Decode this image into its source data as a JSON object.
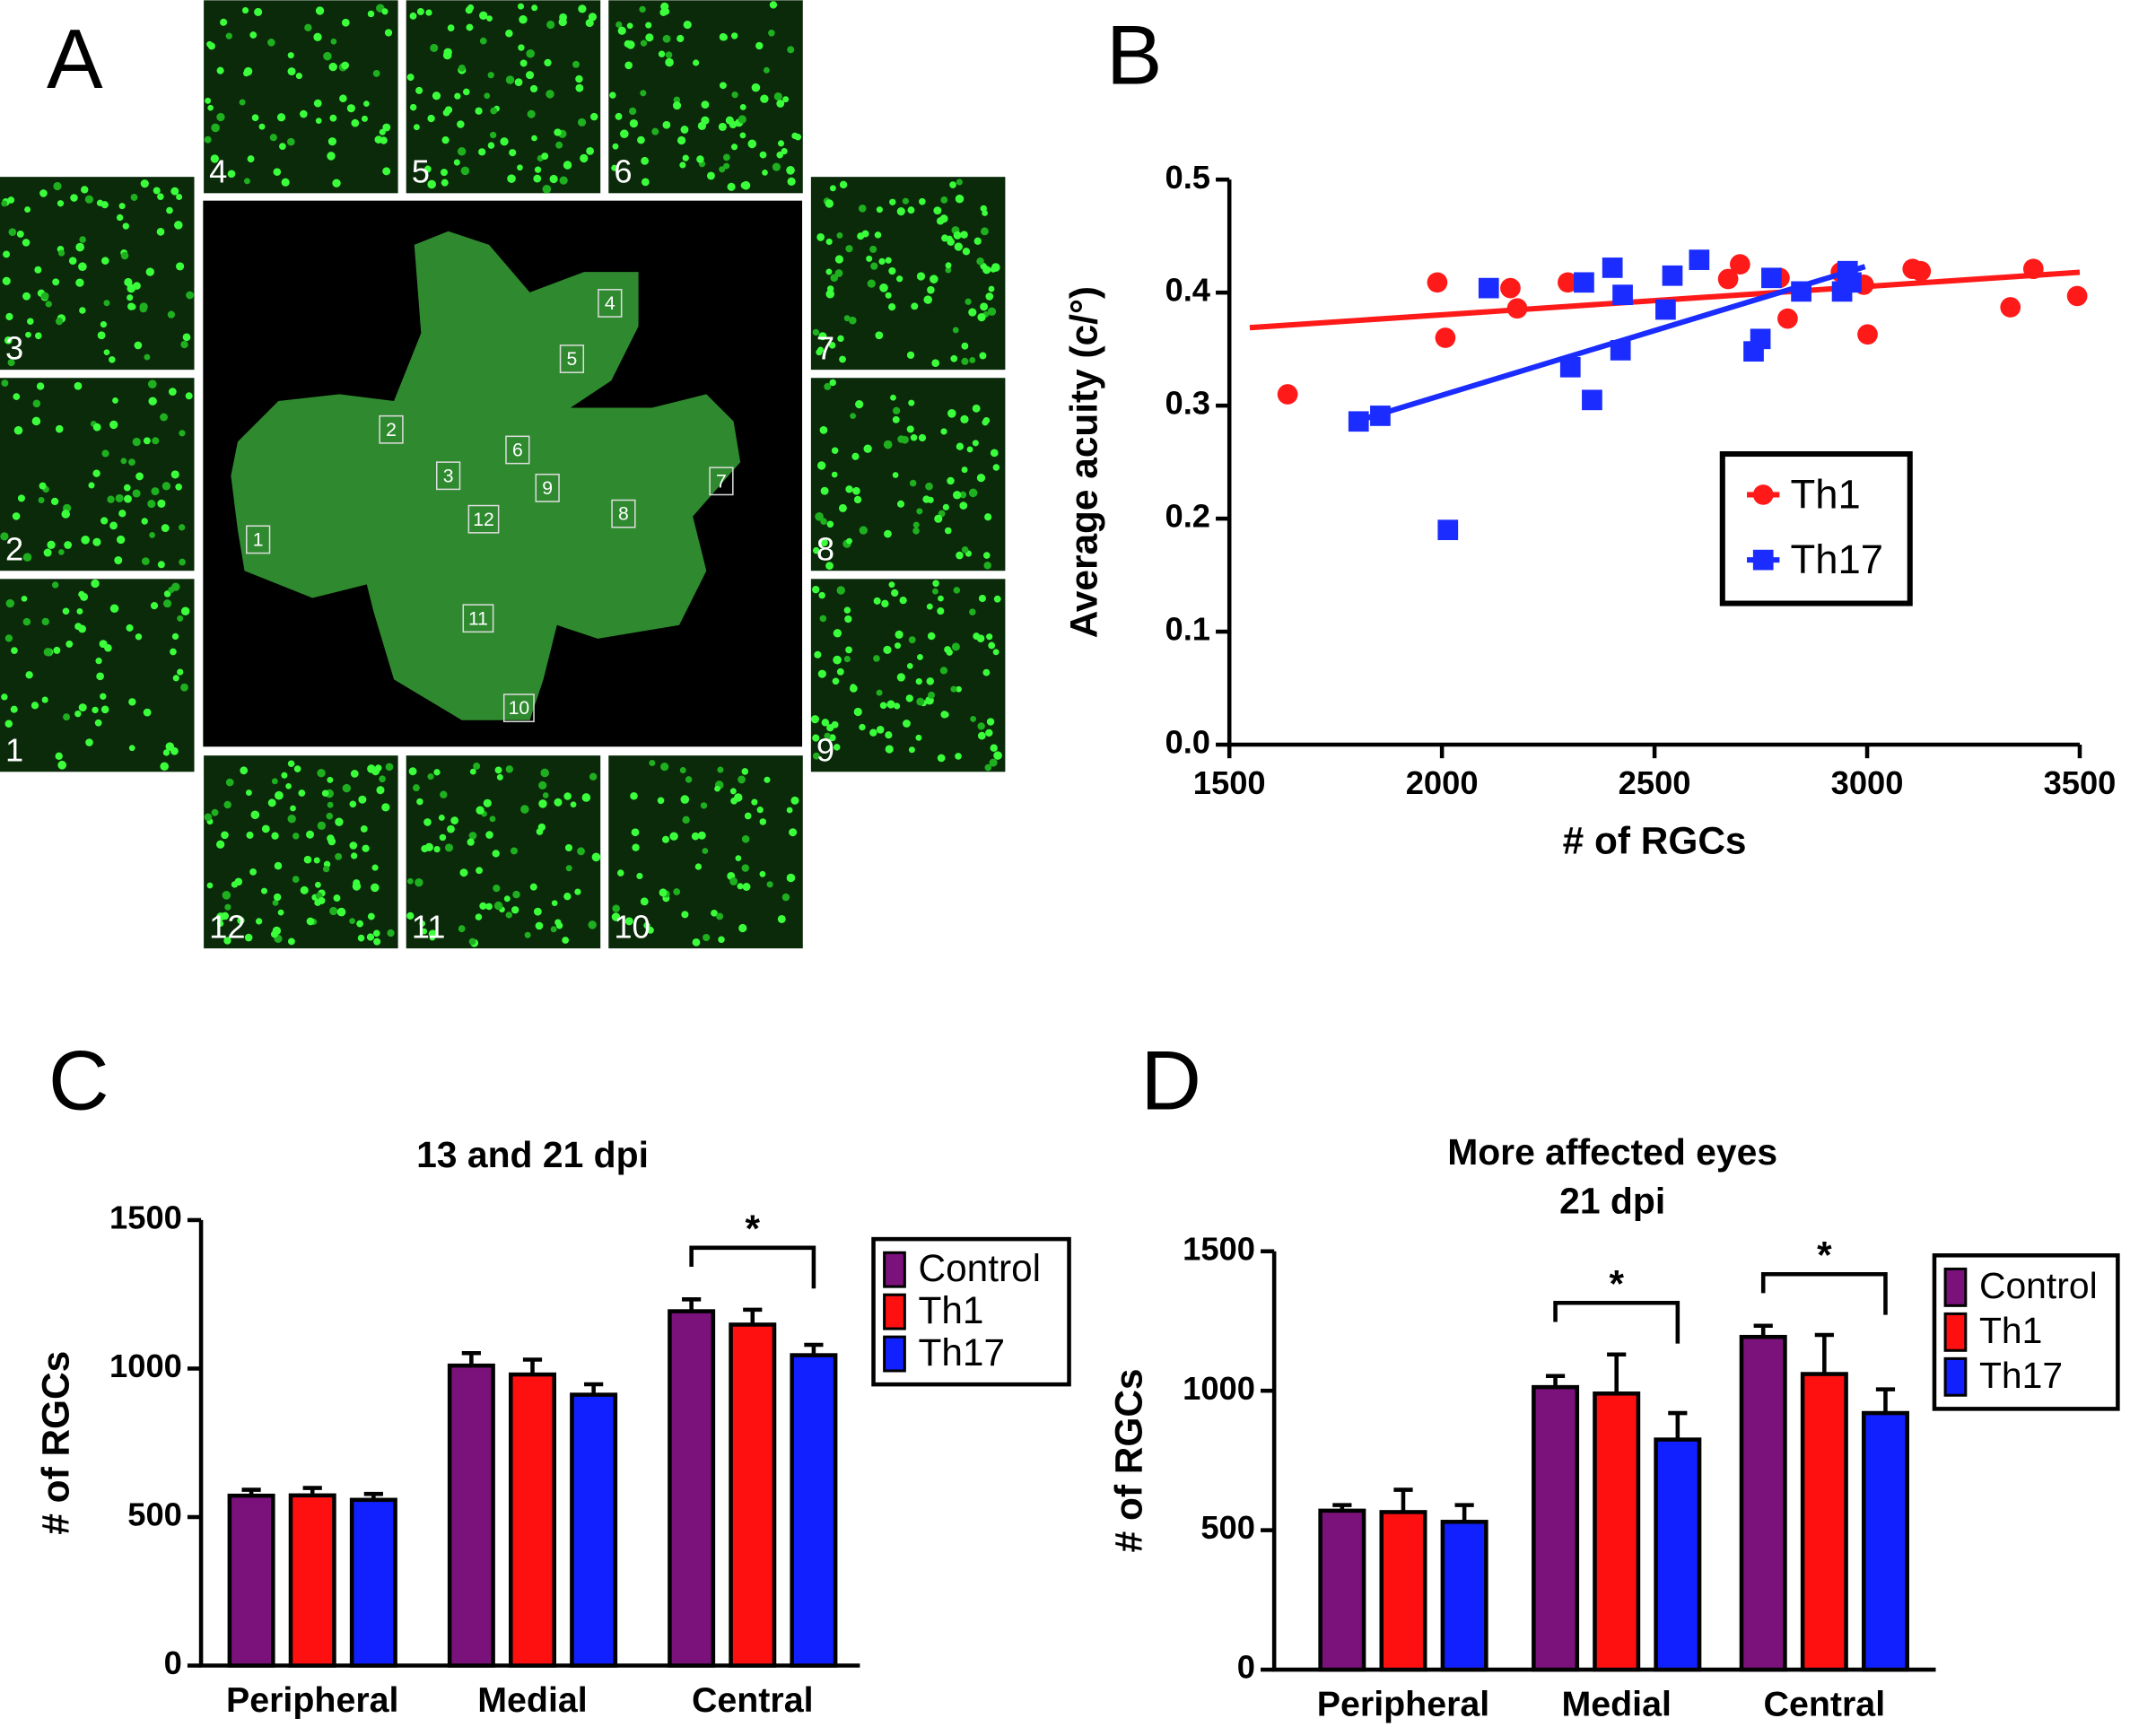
{
  "image_panel": {
    "panel": "A",
    "regions": [
      "1",
      "2",
      "3",
      "4",
      "5",
      "6",
      "7",
      "8",
      "9",
      "10",
      "11",
      "12"
    ]
  },
  "chart_data": [
    {
      "type": "scatter",
      "panel": "B",
      "xlabel": "# of RGCs",
      "ylabel": "Average acuity (c/°)",
      "xlim": [
        1500,
        3500
      ],
      "xticks": [
        1500,
        2000,
        2500,
        3000,
        3500
      ],
      "ylim": [
        0,
        0.5
      ],
      "yticks": [
        {
          "value": 0,
          "label": "0.0"
        },
        0.1,
        0.2,
        0.3,
        0.4,
        0.5
      ],
      "legend": "center right",
      "series": [
        {
          "name": "Th1",
          "color": "#ff1a1a",
          "marker": "circle",
          "x": [
            1637,
            1989,
            2008,
            2161,
            2177,
            2296,
            2673,
            2701,
            2794,
            2813,
            2938,
            2992,
            3001,
            3107,
            3126,
            3337,
            3391,
            3494
          ],
          "values": [
            0.31,
            0.409,
            0.36,
            0.404,
            0.386,
            0.409,
            0.412,
            0.425,
            0.413,
            0.377,
            0.418,
            0.407,
            0.363,
            0.421,
            0.419,
            0.387,
            0.421,
            0.397
          ],
          "trend_x": [
            1548,
            3500
          ],
          "trend_values": [
            0.369,
            0.418
          ]
        },
        {
          "name": "Th17",
          "color": "#1a2cff",
          "marker": "square",
          "x": [
            1804,
            1855,
            2014,
            2110,
            2302,
            2334,
            2353,
            2401,
            2420,
            2425,
            2526,
            2542,
            2605,
            2733,
            2749,
            2775,
            2845,
            2941,
            2954,
            2963
          ],
          "values": [
            0.286,
            0.291,
            0.19,
            0.404,
            0.334,
            0.409,
            0.305,
            0.422,
            0.349,
            0.398,
            0.385,
            0.415,
            0.429,
            0.348,
            0.359,
            0.413,
            0.401,
            0.401,
            0.419,
            0.409
          ],
          "trend_x": [
            1797,
            2995
          ],
          "trend_values": [
            0.286,
            0.423
          ]
        }
      ]
    },
    {
      "type": "bar",
      "panel": "C",
      "title": "13 and 21 dpi",
      "ylabel": "# of RGCs",
      "categories": [
        "Peripheral",
        "Medial",
        "Central"
      ],
      "ylim": [
        0,
        1500
      ],
      "yticks": [
        0,
        500,
        1000,
        1500
      ],
      "legend": "upper right",
      "series": [
        {
          "name": "Control",
          "color": "#7b127b",
          "values": [
            572,
            1010,
            1193
          ],
          "errors": [
            20,
            42,
            40
          ]
        },
        {
          "name": "Th1",
          "color": "#ff1010",
          "values": [
            573,
            980,
            1148
          ],
          "errors": [
            25,
            50,
            50
          ]
        },
        {
          "name": "Th17",
          "color": "#1020ff",
          "values": [
            558,
            912,
            1045
          ],
          "errors": [
            20,
            35,
            35
          ]
        }
      ],
      "annotations": [
        {
          "text": "*",
          "category": "Central"
        }
      ]
    },
    {
      "type": "bar",
      "panel": "D",
      "title": [
        "More affected eyes",
        "21 dpi"
      ],
      "ylabel": "# of RGCs",
      "categories": [
        "Peripheral",
        "Medial",
        "Central"
      ],
      "ylim": [
        0,
        1500
      ],
      "yticks": [
        0,
        500,
        1000,
        1500
      ],
      "legend": "upper right",
      "series": [
        {
          "name": "Control",
          "color": "#7b127b",
          "values": [
            570,
            1013,
            1193
          ],
          "errors": [
            20,
            40,
            40
          ]
        },
        {
          "name": "Th1",
          "color": "#ff1010",
          "values": [
            565,
            990,
            1060
          ],
          "errors": [
            80,
            140,
            140
          ]
        },
        {
          "name": "Th17",
          "color": "#1020ff",
          "values": [
            530,
            825,
            920
          ],
          "errors": [
            60,
            95,
            85
          ]
        }
      ],
      "annotations": [
        {
          "text": "*",
          "category": "Medial"
        },
        {
          "text": "*",
          "category": "Central"
        }
      ]
    }
  ]
}
